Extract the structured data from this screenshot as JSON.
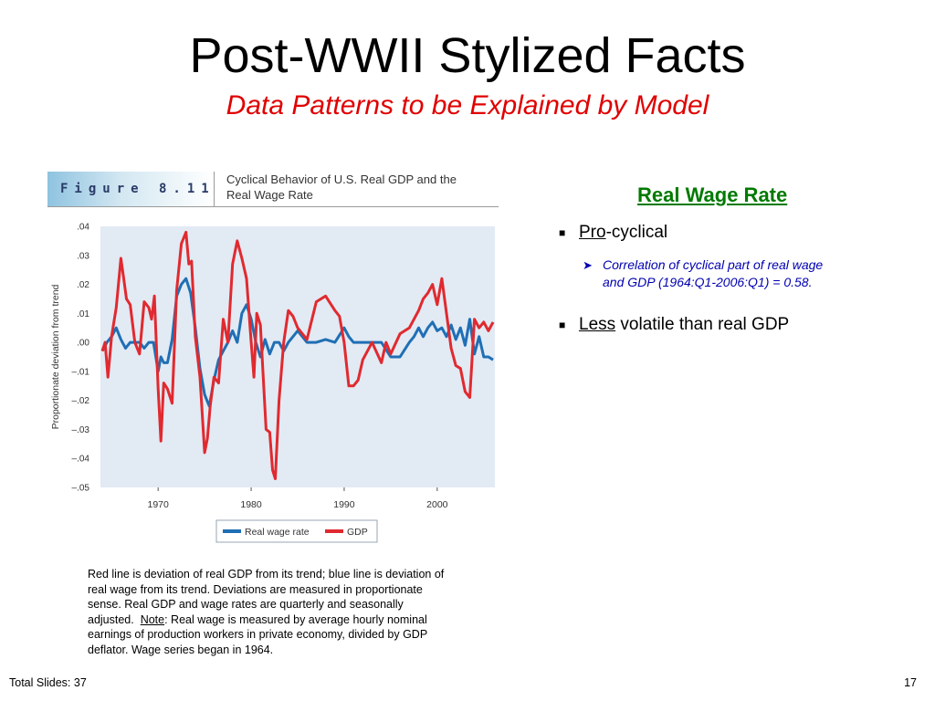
{
  "slide": {
    "title": "Post-WWII Stylized Facts",
    "subtitle": "Data Patterns to be Explained by Model",
    "footer_left": "Total Slides: 37",
    "page_number": "17"
  },
  "figure": {
    "label": "Figure 8.11",
    "title_line1": "Cyclical Behavior of U.S. Real GDP and the",
    "title_line2": "Real Wage Rate"
  },
  "right_panel": {
    "heading": "Real Wage Rate",
    "bullet1_underlined": "Pro",
    "bullet1_rest": "-cyclical",
    "sub_bullet_line1": "Correlation of cyclical part of real wage",
    "sub_bullet_line2": "and GDP  (1964:Q1-2006:Q1) = 0.58.",
    "bullet2_underlined": "Less",
    "bullet2_rest": " volatile than real GDP"
  },
  "caption": {
    "line1": "Red line is deviation of real GDP from its trend; blue line is deviation of",
    "line2": "real wage from its trend.  Deviations are measured in proportionate",
    "line3": "sense.  Real GDP and wage rates are quarterly and seasonally",
    "line4_before": "adjusted.  ",
    "line4_note": "Note",
    "line4_after": ": Real wage is measured by average hourly nominal",
    "line5": "earnings of production workers in private economy, divided by GDP",
    "line6": "deflator.  Wage series began in 1964."
  },
  "colors": {
    "gdp": "#e02a2f",
    "wage": "#1f6fb4",
    "plot_background": "#e2eaf4"
  },
  "chart_data": {
    "type": "line",
    "ylabel": "Proportionate deviation from trend",
    "xlim": [
      1963.8,
      2006.2
    ],
    "ylim": [
      -0.05,
      0.04
    ],
    "xticks": [
      1970,
      1980,
      1990,
      2000
    ],
    "xtick_labels": [
      "1970",
      "1980",
      "1990",
      "2000"
    ],
    "yticks": [
      0.04,
      0.03,
      0.02,
      0.01,
      0.0,
      -0.01,
      -0.02,
      -0.03,
      -0.04,
      -0.05
    ],
    "ytick_labels": [
      ".04",
      ".03",
      ".02",
      ".01",
      ".00",
      "–.01",
      "–.02",
      "–.03",
      "–.04",
      "–.05"
    ],
    "grid": false,
    "legend_position": "bottom",
    "series": [
      {
        "name": "Real wage rate",
        "color": "#1f6fb4",
        "x": [
          1964.0,
          1964.5,
          1965.0,
          1965.5,
          1966.0,
          1966.5,
          1967.0,
          1967.5,
          1968.0,
          1968.5,
          1969.0,
          1969.5,
          1970.0,
          1970.3,
          1970.6,
          1971.0,
          1971.5,
          1972.0,
          1972.5,
          1973.0,
          1973.5,
          1974.0,
          1974.5,
          1975.0,
          1975.5,
          1976.0,
          1976.5,
          1977.0,
          1977.5,
          1978.0,
          1978.5,
          1979.0,
          1979.5,
          1980.0,
          1980.5,
          1981.0,
          1981.5,
          1982.0,
          1982.5,
          1983.0,
          1983.5,
          1984.0,
          1985.0,
          1986.0,
          1987.0,
          1988.0,
          1989.0,
          1990.0,
          1990.5,
          1991.0,
          1992.0,
          1993.0,
          1994.0,
          1995.0,
          1996.0,
          1997.0,
          1997.5,
          1998.0,
          1998.5,
          1999.0,
          1999.5,
          2000.0,
          2000.5,
          2001.0,
          2001.5,
          2002.0,
          2002.5,
          2003.0,
          2003.5,
          2004.0,
          2004.5,
          2005.0,
          2005.5,
          2006.0
        ],
        "y": [
          -0.003,
          0.0,
          0.002,
          0.005,
          0.001,
          -0.002,
          0.0,
          0.0,
          0.0,
          -0.002,
          0.0,
          0.0,
          -0.01,
          -0.005,
          -0.007,
          -0.007,
          0.001,
          0.016,
          0.02,
          0.022,
          0.017,
          0.005,
          -0.009,
          -0.018,
          -0.022,
          -0.013,
          -0.006,
          -0.003,
          0.0,
          0.004,
          0.0,
          0.01,
          0.013,
          0.008,
          0.0,
          -0.005,
          0.001,
          -0.004,
          0.0,
          0.0,
          -0.003,
          0.0,
          0.004,
          0.0,
          0.0,
          0.001,
          0.0,
          0.005,
          0.002,
          0.0,
          0.0,
          0.0,
          0.0,
          -0.005,
          -0.005,
          0.0,
          0.002,
          0.005,
          0.002,
          0.005,
          0.007,
          0.004,
          0.005,
          0.002,
          0.006,
          0.001,
          0.005,
          -0.001,
          0.008,
          -0.004,
          0.002,
          -0.005,
          -0.005,
          -0.006
        ]
      },
      {
        "name": "GDP",
        "color": "#e02a2f",
        "x": [
          1964.0,
          1964.3,
          1964.6,
          1965.0,
          1965.5,
          1966.0,
          1966.3,
          1966.6,
          1967.0,
          1967.5,
          1968.0,
          1968.5,
          1969.0,
          1969.3,
          1969.6,
          1970.0,
          1970.3,
          1970.6,
          1971.0,
          1971.5,
          1972.0,
          1972.5,
          1973.0,
          1973.3,
          1973.6,
          1974.0,
          1974.5,
          1975.0,
          1975.3,
          1975.6,
          1976.0,
          1976.5,
          1977.0,
          1977.5,
          1978.0,
          1978.5,
          1979.0,
          1979.5,
          1980.0,
          1980.3,
          1980.6,
          1981.0,
          1981.3,
          1981.6,
          1982.0,
          1982.3,
          1982.6,
          1983.0,
          1983.5,
          1984.0,
          1984.5,
          1985.0,
          1986.0,
          1987.0,
          1988.0,
          1989.0,
          1989.5,
          1990.0,
          1990.5,
          1991.0,
          1991.5,
          1992.0,
          1993.0,
          1994.0,
          1994.5,
          1995.0,
          1996.0,
          1997.0,
          1998.0,
          1998.5,
          1999.0,
          1999.5,
          2000.0,
          2000.5,
          2001.0,
          2001.5,
          2002.0,
          2002.5,
          2003.0,
          2003.5,
          2004.0,
          2004.5,
          2005.0,
          2005.5,
          2006.0
        ],
        "y": [
          -0.003,
          0.0,
          -0.012,
          0.002,
          0.012,
          0.029,
          0.022,
          0.015,
          0.013,
          0.0,
          -0.004,
          0.014,
          0.012,
          0.008,
          0.016,
          -0.016,
          -0.034,
          -0.014,
          -0.016,
          -0.021,
          0.018,
          0.034,
          0.038,
          0.027,
          0.028,
          0.002,
          -0.012,
          -0.038,
          -0.033,
          -0.022,
          -0.012,
          -0.014,
          0.008,
          0.0,
          0.027,
          0.035,
          0.029,
          0.022,
          0.0,
          -0.012,
          0.01,
          0.006,
          -0.012,
          -0.03,
          -0.031,
          -0.044,
          -0.047,
          -0.02,
          0.0,
          0.011,
          0.009,
          0.005,
          0.001,
          0.014,
          0.016,
          0.011,
          0.009,
          0.0,
          -0.015,
          -0.015,
          -0.013,
          -0.006,
          0.0,
          -0.007,
          0.0,
          -0.004,
          0.003,
          0.005,
          0.011,
          0.015,
          0.017,
          0.02,
          0.013,
          0.022,
          0.01,
          -0.002,
          -0.008,
          -0.009,
          -0.017,
          -0.019,
          0.008,
          0.005,
          0.007,
          0.004,
          0.007
        ]
      }
    ]
  }
}
